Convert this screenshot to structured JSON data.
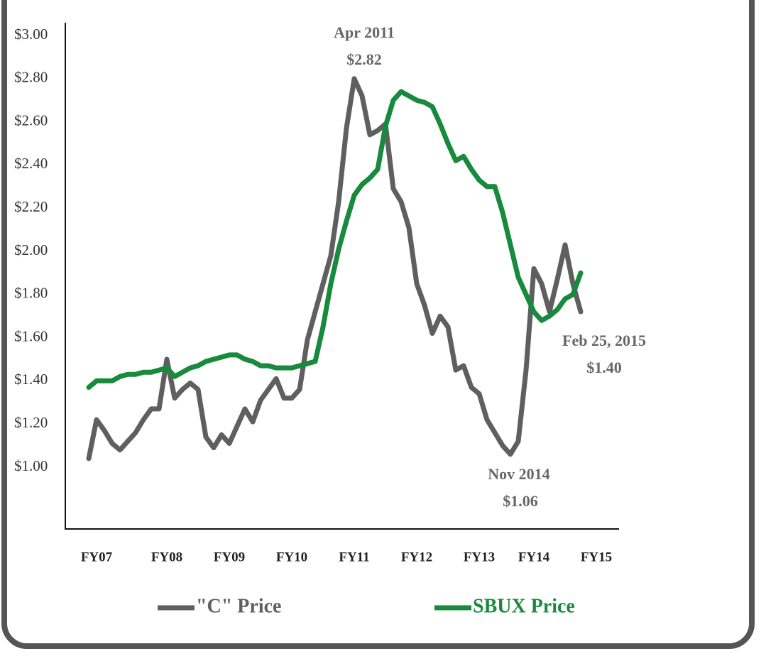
{
  "chart_data": {
    "type": "line",
    "categories": [
      null,
      "FY07",
      null,
      null,
      null,
      null,
      null,
      null,
      null,
      null,
      "FY08",
      null,
      null,
      null,
      null,
      null,
      null,
      null,
      "FY09",
      null,
      null,
      null,
      null,
      null,
      null,
      null,
      "FY10",
      null,
      null,
      null,
      null,
      null,
      null,
      null,
      "FY11",
      null,
      null,
      null,
      null,
      null,
      null,
      null,
      "FY12",
      null,
      null,
      null,
      null,
      null,
      null,
      null,
      "FY13",
      null,
      null,
      null,
      null,
      null,
      null,
      "FY14",
      null,
      null,
      null,
      null,
      null,
      null,
      null,
      "FY15"
    ],
    "series": [
      {
        "name": "\"C\" Price",
        "color": "#5f5f5f",
        "values": [
          1.04,
          1.22,
          1.17,
          1.11,
          1.08,
          1.12,
          1.16,
          1.22,
          1.27,
          1.27,
          1.5,
          1.32,
          1.36,
          1.39,
          1.36,
          1.14,
          1.09,
          1.15,
          1.11,
          1.19,
          1.27,
          1.21,
          1.31,
          1.36,
          1.41,
          1.32,
          1.32,
          1.36,
          1.59,
          1.72,
          1.85,
          1.98,
          2.23,
          2.57,
          2.8,
          2.72,
          2.54,
          2.56,
          2.59,
          2.29,
          2.23,
          2.11,
          1.85,
          1.75,
          1.62,
          1.7,
          1.65,
          1.45,
          1.47,
          1.37,
          1.34,
          1.22,
          1.16,
          1.1,
          1.06,
          1.12,
          1.45,
          1.92,
          1.85,
          1.72,
          1.87,
          2.03,
          1.85,
          1.72,
          null,
          null
        ]
      },
      {
        "name": "SBUX Price",
        "color": "#178a3c",
        "values": [
          1.37,
          1.4,
          1.4,
          1.4,
          1.42,
          1.43,
          1.43,
          1.44,
          1.44,
          1.45,
          1.46,
          1.42,
          1.44,
          1.46,
          1.47,
          1.49,
          1.5,
          1.51,
          1.52,
          1.52,
          1.5,
          1.49,
          1.47,
          1.47,
          1.46,
          1.46,
          1.46,
          1.47,
          1.48,
          1.49,
          1.65,
          1.85,
          2.01,
          2.14,
          2.26,
          2.31,
          2.34,
          2.38,
          2.58,
          2.7,
          2.74,
          2.72,
          2.7,
          2.69,
          2.67,
          2.59,
          2.5,
          2.42,
          2.44,
          2.38,
          2.33,
          2.3,
          2.3,
          2.18,
          2.03,
          1.88,
          1.8,
          1.72,
          1.68,
          1.7,
          1.73,
          1.78,
          1.8,
          1.9,
          null,
          null
        ]
      }
    ],
    "ylim": [
      0.7,
      3.0
    ],
    "yticks": [
      {
        "value": 1.0,
        "label": "$1.00"
      },
      {
        "value": 1.2,
        "label": "$1.20"
      },
      {
        "value": 1.4,
        "label": "$1.40"
      },
      {
        "value": 1.6,
        "label": "$1.60"
      },
      {
        "value": 1.8,
        "label": "$1.80"
      },
      {
        "value": 2.0,
        "label": "$2.00"
      },
      {
        "value": 2.2,
        "label": "$2.20"
      },
      {
        "value": 2.4,
        "label": "$2.40"
      },
      {
        "value": 2.6,
        "label": "$2.60"
      },
      {
        "value": 2.8,
        "label": "$2.80"
      },
      {
        "value": 3.0,
        "label": "$3.00"
      }
    ],
    "grid": false,
    "legend": "bottom",
    "annotations": [
      [
        "Apr 2011",
        "$2.82"
      ],
      [
        "Nov 2014",
        "$1.06"
      ],
      [
        "Feb 25, 2015",
        "$1.40"
      ]
    ]
  }
}
